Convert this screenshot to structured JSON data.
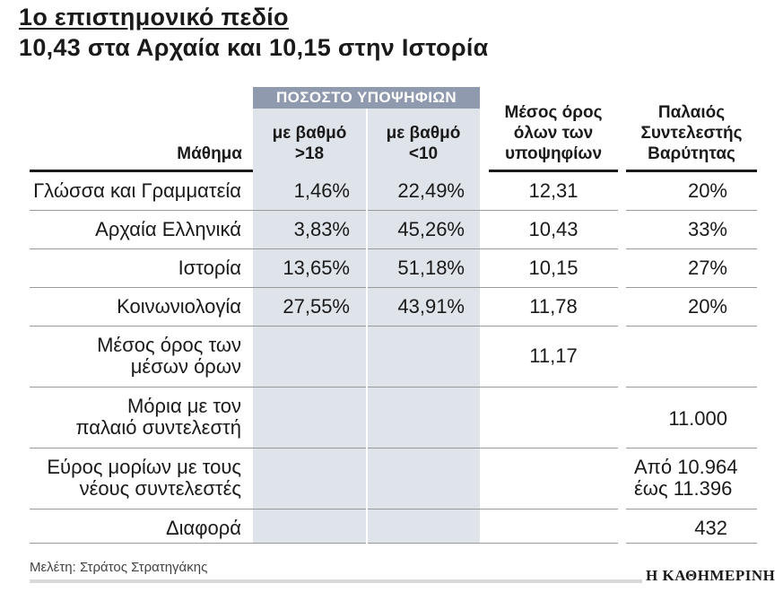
{
  "article": {
    "kicker": "1ο επιστημονικό πεδίο",
    "headline": "10,43 στα Αρχαία και 10,15 στην Ιστορία"
  },
  "table": {
    "group_header": "ΠΟΣΟΣΤΟ ΥΠΟΨΗΦΙΩΝ",
    "columns": {
      "subject": "Μάθημα",
      "above18": [
        "με βαθμό",
        ">18"
      ],
      "below10": [
        "με βαθμό",
        "<10"
      ],
      "mean": [
        "Μέσος όρος",
        "όλων των",
        "υποψηφίων"
      ],
      "old_coef": [
        "Παλαιός",
        "Συντελεστής",
        "Βαρύτητας"
      ]
    },
    "rows": [
      {
        "subject": [
          "Γλώσσα και Γραμματεία"
        ],
        "above18": "1,46%",
        "below10": "22,49%",
        "mean": "12,31",
        "old_coef": [
          "20%"
        ]
      },
      {
        "subject": [
          "Αρχαία Ελληνικά"
        ],
        "above18": "3,83%",
        "below10": "45,26%",
        "mean": "10,43",
        "old_coef": [
          "33%"
        ]
      },
      {
        "subject": [
          "Ιστορία"
        ],
        "above18": "13,65%",
        "below10": "51,18%",
        "mean": "10,15",
        "old_coef": [
          "27%"
        ]
      },
      {
        "subject": [
          "Κοινωνιολογία"
        ],
        "above18": "27,55%",
        "below10": "43,91%",
        "mean": "11,78",
        "old_coef": [
          "20%"
        ]
      },
      {
        "subject": [
          "Μέσος όρος των",
          "μέσων όρων"
        ],
        "above18": "",
        "below10": "",
        "mean": "11,17",
        "old_coef": []
      },
      {
        "subject": [
          "Μόρια με τον",
          "παλαιό συντελεστή"
        ],
        "above18": "",
        "below10": "",
        "mean": "",
        "old_coef": [
          "11.000"
        ]
      },
      {
        "subject": [
          "Εύρος μορίων με τους",
          "νέους συντελεστές"
        ],
        "above18": "",
        "below10": "",
        "mean": "",
        "old_coef": [
          "Από 10.964",
          "έως 11.396"
        ]
      },
      {
        "subject": [
          "Διαφορά"
        ],
        "above18": "",
        "below10": "",
        "mean": "",
        "old_coef": [
          "432"
        ]
      }
    ]
  },
  "footer": {
    "credit": "Μελέτη: Στράτος Στρατηγάκης",
    "publisher": "Η ΚΑΘΗΜΕΡΙΝΗ"
  },
  "colors": {
    "band": "#dfe3ea",
    "band_header": "#8f9aae",
    "rule": "#9a9a9a"
  }
}
